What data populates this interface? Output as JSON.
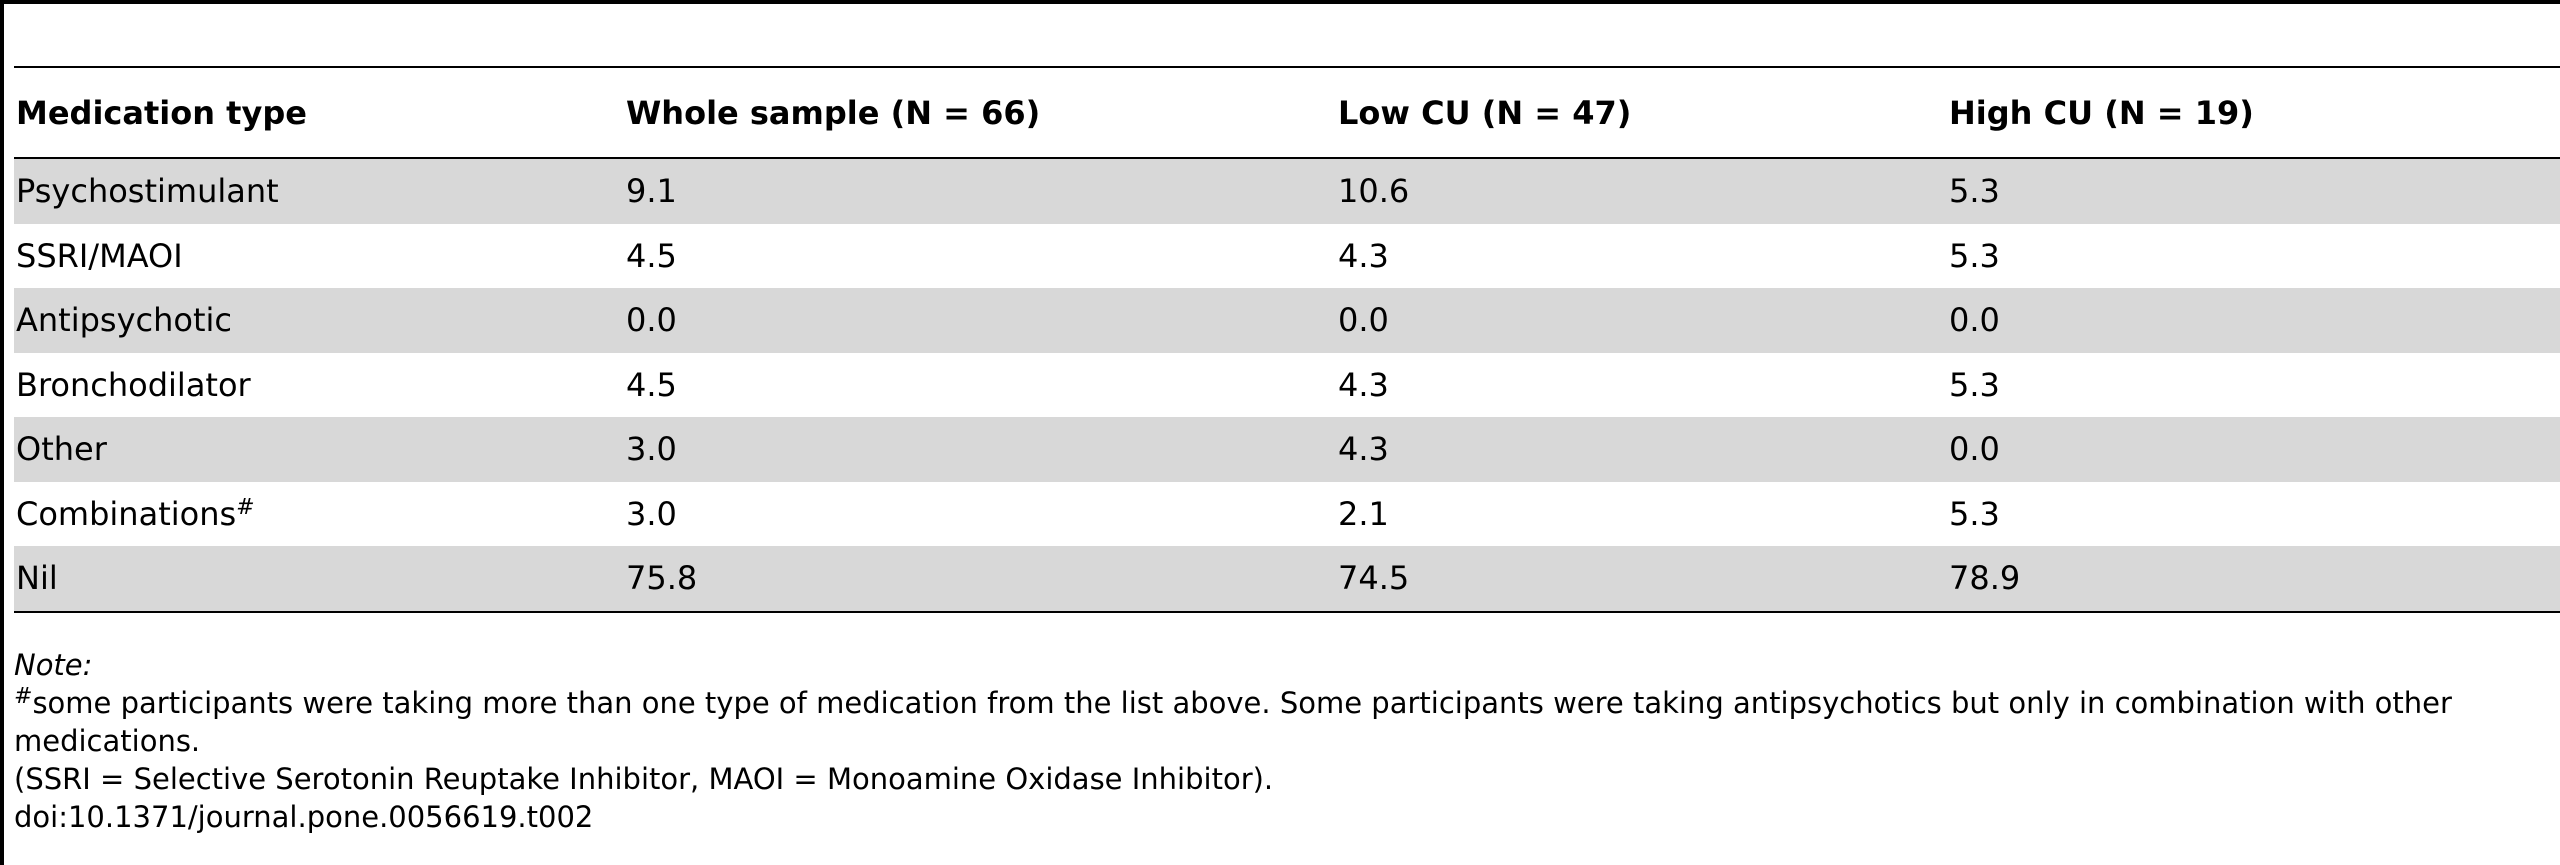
{
  "table": {
    "headers": [
      "Medication type",
      "Whole sample (N = 66)",
      "Low CU (N = 47)",
      "High CU (N = 19)"
    ],
    "rows": [
      {
        "label": "Psychostimulant",
        "marker": "",
        "whole": "9.1",
        "low": "10.6",
        "high": "5.3"
      },
      {
        "label": "SSRI/MAOI",
        "marker": "",
        "whole": "4.5",
        "low": "4.3",
        "high": "5.3"
      },
      {
        "label": "Antipsychotic",
        "marker": "",
        "whole": "0.0",
        "low": "0.0",
        "high": "0.0"
      },
      {
        "label": "Bronchodilator",
        "marker": "",
        "whole": "4.5",
        "low": "4.3",
        "high": "5.3"
      },
      {
        "label": "Other",
        "marker": "",
        "whole": "3.0",
        "low": "4.3",
        "high": "0.0"
      },
      {
        "label": "Combinations",
        "marker": "#",
        "whole": "3.0",
        "low": "2.1",
        "high": "5.3"
      },
      {
        "label": "Nil",
        "marker": "",
        "whole": "75.8",
        "low": "74.5",
        "high": "78.9"
      }
    ]
  },
  "notes": {
    "label": "Note:",
    "marker": "#",
    "footnote": "some participants were taking more than one type of medication from the list above. Some participants were taking antipsychotics but only in combination with other medications.",
    "abbreviations": "(SSRI = Selective Serotonin Reuptake Inhibitor, MAOI = Monoamine Oxidase Inhibitor).",
    "doi": "doi:10.1371/journal.pone.0056619.t002"
  }
}
